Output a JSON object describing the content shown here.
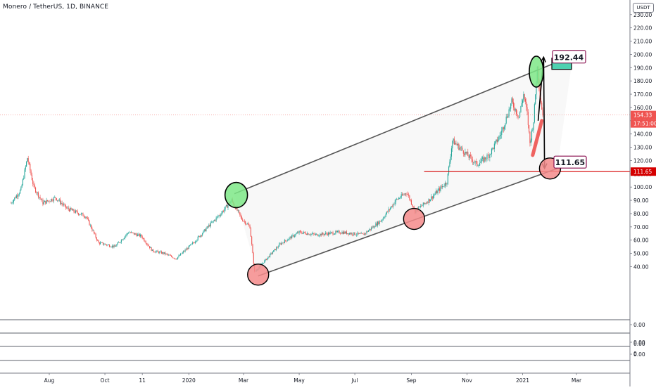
{
  "header": {
    "symbol_title": "Monero / TetherUS, 1D, BINANCE",
    "currency": "USDT"
  },
  "colors": {
    "up": "#26a69a",
    "down": "#ef5350",
    "channel": "#555555",
    "support": "#d50000",
    "ellipse_green": "#7ee787",
    "ellipse_red": "#f48b8b",
    "badge_current": "#ef5350",
    "badge_support": "#d50000",
    "target_box": "#4fd1b0",
    "label_border": "#880e4f"
  },
  "chart_data": {
    "type": "candlestick",
    "symbol": "Monero / TetherUS",
    "interval": "1D",
    "exchange": "BINANCE",
    "x_ticks": [
      "Aug",
      "Oct",
      "11",
      "2020",
      "Mar",
      "May",
      "Jul",
      "Sep",
      "Nov",
      "2021",
      "Mar"
    ],
    "x_tick_dates": [
      "2019-08-01",
      "2019-10-01",
      "2019-11-11",
      "2020-01-01",
      "2020-03-01",
      "2020-05-01",
      "2020-07-01",
      "2020-09-01",
      "2020-11-01",
      "2021-01-01",
      "2021-03-01"
    ],
    "y_ticks": [
      "40.00",
      "50.00",
      "60.00",
      "70.00",
      "80.00",
      "90.00",
      "100.00",
      "110.00",
      "120.00",
      "130.00",
      "140.00",
      "150.00",
      "160.00",
      "170.00",
      "180.00",
      "190.00",
      "200.00",
      "210.00",
      "220.00",
      "230.00"
    ],
    "y_tick_values": [
      40,
      50,
      60,
      70,
      80,
      90,
      100,
      110,
      120,
      130,
      140,
      150,
      160,
      170,
      180,
      190,
      200,
      210,
      220,
      230
    ],
    "ylim": [
      0,
      241
    ],
    "price_path": [
      [
        "2019-06-20",
        88
      ],
      [
        "2019-07-01",
        98
      ],
      [
        "2019-07-08",
        122
      ],
      [
        "2019-07-15",
        100
      ],
      [
        "2019-07-25",
        88
      ],
      [
        "2019-08-08",
        92
      ],
      [
        "2019-08-20",
        84
      ],
      [
        "2019-09-10",
        78
      ],
      [
        "2019-09-24",
        58
      ],
      [
        "2019-10-12",
        55
      ],
      [
        "2019-10-27",
        66
      ],
      [
        "2019-11-10",
        63
      ],
      [
        "2019-11-22",
        52
      ],
      [
        "2019-12-05",
        50
      ],
      [
        "2019-12-18",
        46
      ],
      [
        "2020-01-06",
        58
      ],
      [
        "2020-01-22",
        70
      ],
      [
        "2020-02-05",
        80
      ],
      [
        "2020-02-17",
        90
      ],
      [
        "2020-02-28",
        76
      ],
      [
        "2020-03-08",
        70
      ],
      [
        "2020-03-13",
        36
      ],
      [
        "2020-03-25",
        45
      ],
      [
        "2020-04-10",
        57
      ],
      [
        "2020-05-01",
        66
      ],
      [
        "2020-05-20",
        64
      ],
      [
        "2020-06-15",
        66
      ],
      [
        "2020-07-10",
        64
      ],
      [
        "2020-07-30",
        75
      ],
      [
        "2020-08-15",
        90
      ],
      [
        "2020-08-27",
        96
      ],
      [
        "2020-09-05",
        82
      ],
      [
        "2020-09-20",
        90
      ],
      [
        "2020-10-10",
        104
      ],
      [
        "2020-10-16",
        135
      ],
      [
        "2020-10-28",
        127
      ],
      [
        "2020-11-12",
        117
      ],
      [
        "2020-11-25",
        124
      ],
      [
        "2020-12-08",
        140
      ],
      [
        "2020-12-20",
        164
      ],
      [
        "2020-12-28",
        153
      ],
      [
        "2021-01-02",
        170
      ],
      [
        "2021-01-06",
        155
      ],
      [
        "2021-01-09",
        133
      ],
      [
        "2021-01-13",
        150
      ],
      [
        "2021-01-17",
        190
      ],
      [
        "2021-01-20",
        170
      ],
      [
        "2021-01-23",
        154.33
      ]
    ],
    "current_price": 154.33,
    "current_price_label": "154.33",
    "countdown_label": "17:51:00",
    "support_level": 111.65,
    "support_label": "111.65",
    "target_label": "192.44",
    "target_value": 192.44,
    "channel_upper": [
      [
        "2020-02-20",
        95
      ],
      [
        "2021-02-25",
        199
      ]
    ],
    "channel_lower": [
      [
        "2020-03-17",
        33
      ],
      [
        "2021-02-08",
        114
      ]
    ],
    "green_ellipses": [
      [
        "2020-02-22",
        94
      ],
      [
        "2021-01-16",
        187
      ]
    ],
    "red_ellipses": [
      [
        "2020-03-17",
        34
      ],
      [
        "2020-09-04",
        76
      ],
      [
        "2021-01-31",
        114
      ]
    ],
    "projection_path": [
      [
        "2021-01-18",
        150
      ],
      [
        "2021-01-24",
        198
      ],
      [
        "2021-01-25",
        114
      ]
    ],
    "pane_ticks": [
      "0.00",
      "0.00",
      "0.00",
      "0"
    ]
  }
}
